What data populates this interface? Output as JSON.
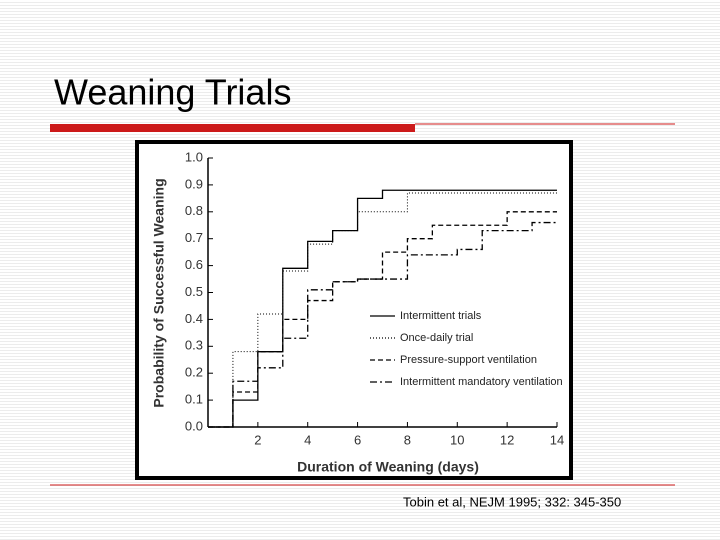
{
  "title": "Weaning Trials",
  "citation": "Tobin et al, NEJM 1995; 332: 345-350",
  "chart_data": {
    "type": "step",
    "ylabel": "Probability of Successful Weaning",
    "xlabel": "Duration of Weaning (days)",
    "x": [
      0,
      1,
      2,
      3,
      4,
      5,
      6,
      7,
      8,
      9,
      10,
      11,
      12,
      13,
      14
    ],
    "xlim": [
      0,
      14
    ],
    "xticks": [
      2,
      4,
      6,
      8,
      10,
      12,
      14
    ],
    "ylim": [
      0,
      1
    ],
    "yticks": [
      {
        "value": 0,
        "label": "0.0"
      },
      0.1,
      0.2,
      0.3,
      0.4,
      0.5,
      0.6,
      0.7,
      0.8,
      0.9,
      {
        "value": 1,
        "label": "1.0"
      }
    ],
    "series": [
      {
        "name": "Intermittent trials",
        "color": "#000000",
        "line_style": "solid",
        "values": [
          0,
          0.1,
          0.28,
          0.59,
          0.69,
          0.73,
          0.85,
          0.88,
          0.88,
          0.88,
          0.88,
          0.88,
          0.88,
          0.88,
          0.88
        ]
      },
      {
        "name": "Once-daily trial",
        "color": "#000000",
        "line_style": "dotted",
        "values": [
          0,
          0.28,
          0.42,
          0.58,
          0.68,
          0.73,
          0.8,
          0.8,
          0.87,
          0.87,
          0.87,
          0.87,
          0.87,
          0.87,
          0.87
        ]
      },
      {
        "name": "Pressure-support ventilation",
        "color": "#000000",
        "line_style": "dashed",
        "values": [
          0,
          0.13,
          0.28,
          0.4,
          0.47,
          0.54,
          0.55,
          0.65,
          0.7,
          0.75,
          0.75,
          0.75,
          0.8,
          0.8,
          0.8
        ]
      },
      {
        "name": "Intermittent mandatory ventilation",
        "color": "#000000",
        "line_style": "dashdot",
        "values": [
          0,
          0.17,
          0.22,
          0.33,
          0.51,
          0.54,
          0.55,
          0.55,
          0.64,
          0.64,
          0.66,
          0.73,
          0.73,
          0.76,
          0.76
        ]
      }
    ]
  }
}
